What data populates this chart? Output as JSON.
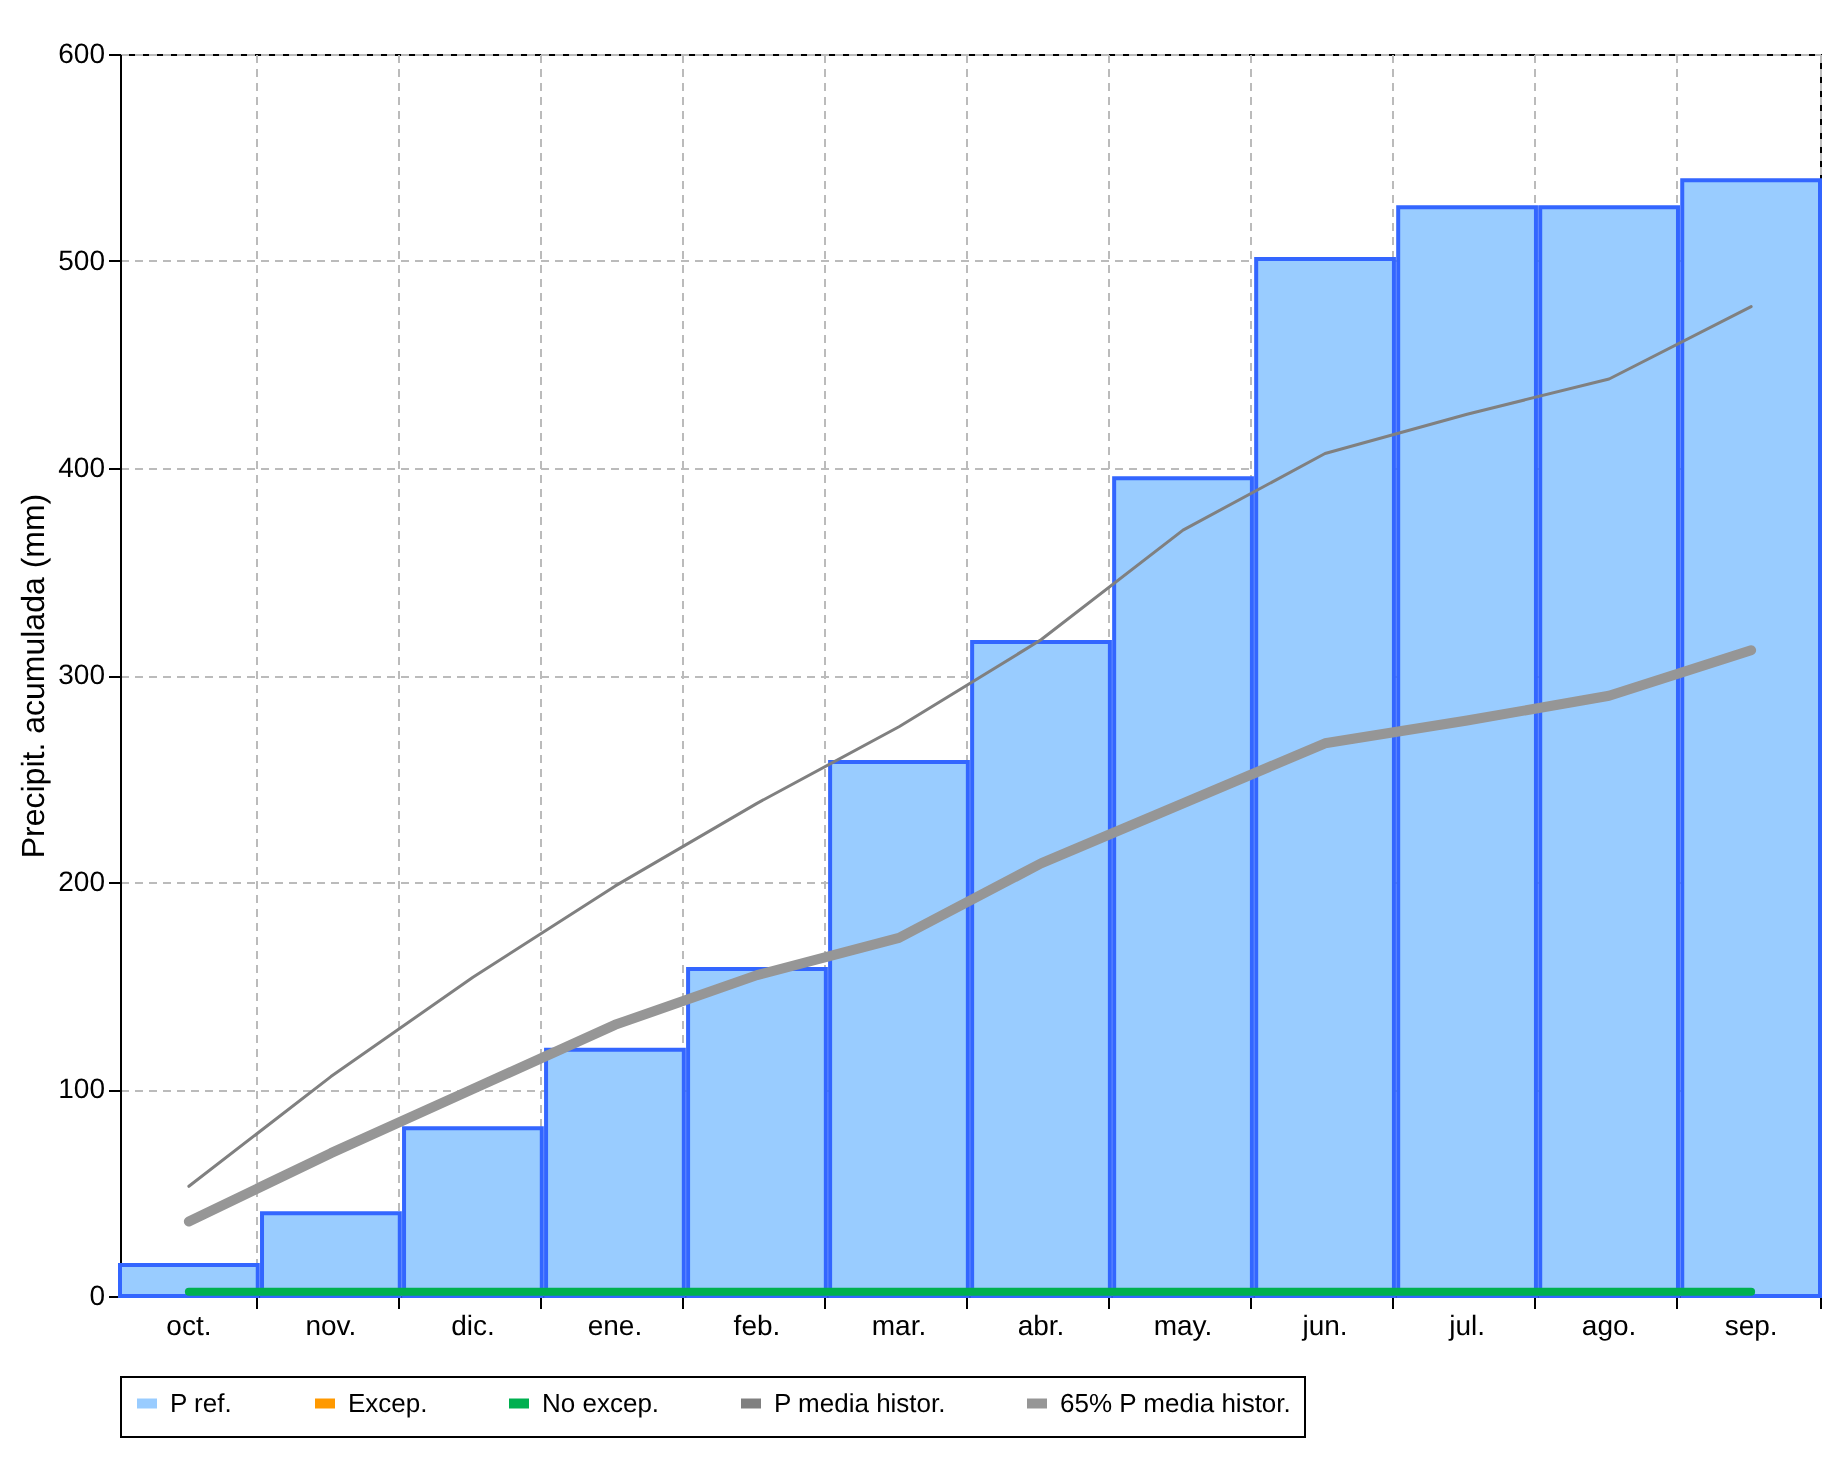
{
  "chart_data": {
    "type": "bar",
    "ylabel": "Precipit. acumulada (mm)",
    "categories": [
      "oct.",
      "nov.",
      "dic.",
      "ene.",
      "feb.",
      "mar.",
      "abr.",
      "may.",
      "jun.",
      "jul.",
      "ago.",
      "sep."
    ],
    "series": [
      {
        "name": "P ref.",
        "color": "#99ccff",
        "values": [
          15,
          40,
          81,
          119,
          158,
          258,
          316,
          395,
          501,
          526,
          526,
          539
        ]
      },
      {
        "name": "Excep.",
        "type": "line",
        "color": "#ff9900",
        "values": [
          null,
          null,
          null,
          null,
          null,
          null,
          null,
          null,
          null,
          null,
          null,
          null
        ]
      },
      {
        "name": "No excep.",
        "type": "line",
        "color": "#00b050",
        "values": [
          2,
          2,
          2,
          2,
          2,
          2,
          2,
          2,
          2,
          2,
          2,
          2
        ]
      },
      {
        "name": "P media histor.",
        "type": "line",
        "color": "#808080",
        "values": [
          53,
          106,
          154,
          198,
          238,
          275,
          317,
          370,
          407,
          426,
          443,
          478
        ]
      },
      {
        "name": "65% P media histor.",
        "type": "line",
        "color": "#969696",
        "values": [
          36,
          69,
          100,
          131,
          155,
          173,
          209,
          238,
          267,
          278,
          290,
          312
        ]
      }
    ],
    "ylim": [
      0,
      600
    ],
    "yticks": [
      0,
      100,
      200,
      300,
      400,
      500,
      600
    ],
    "grid": true,
    "legend": "bottom"
  }
}
